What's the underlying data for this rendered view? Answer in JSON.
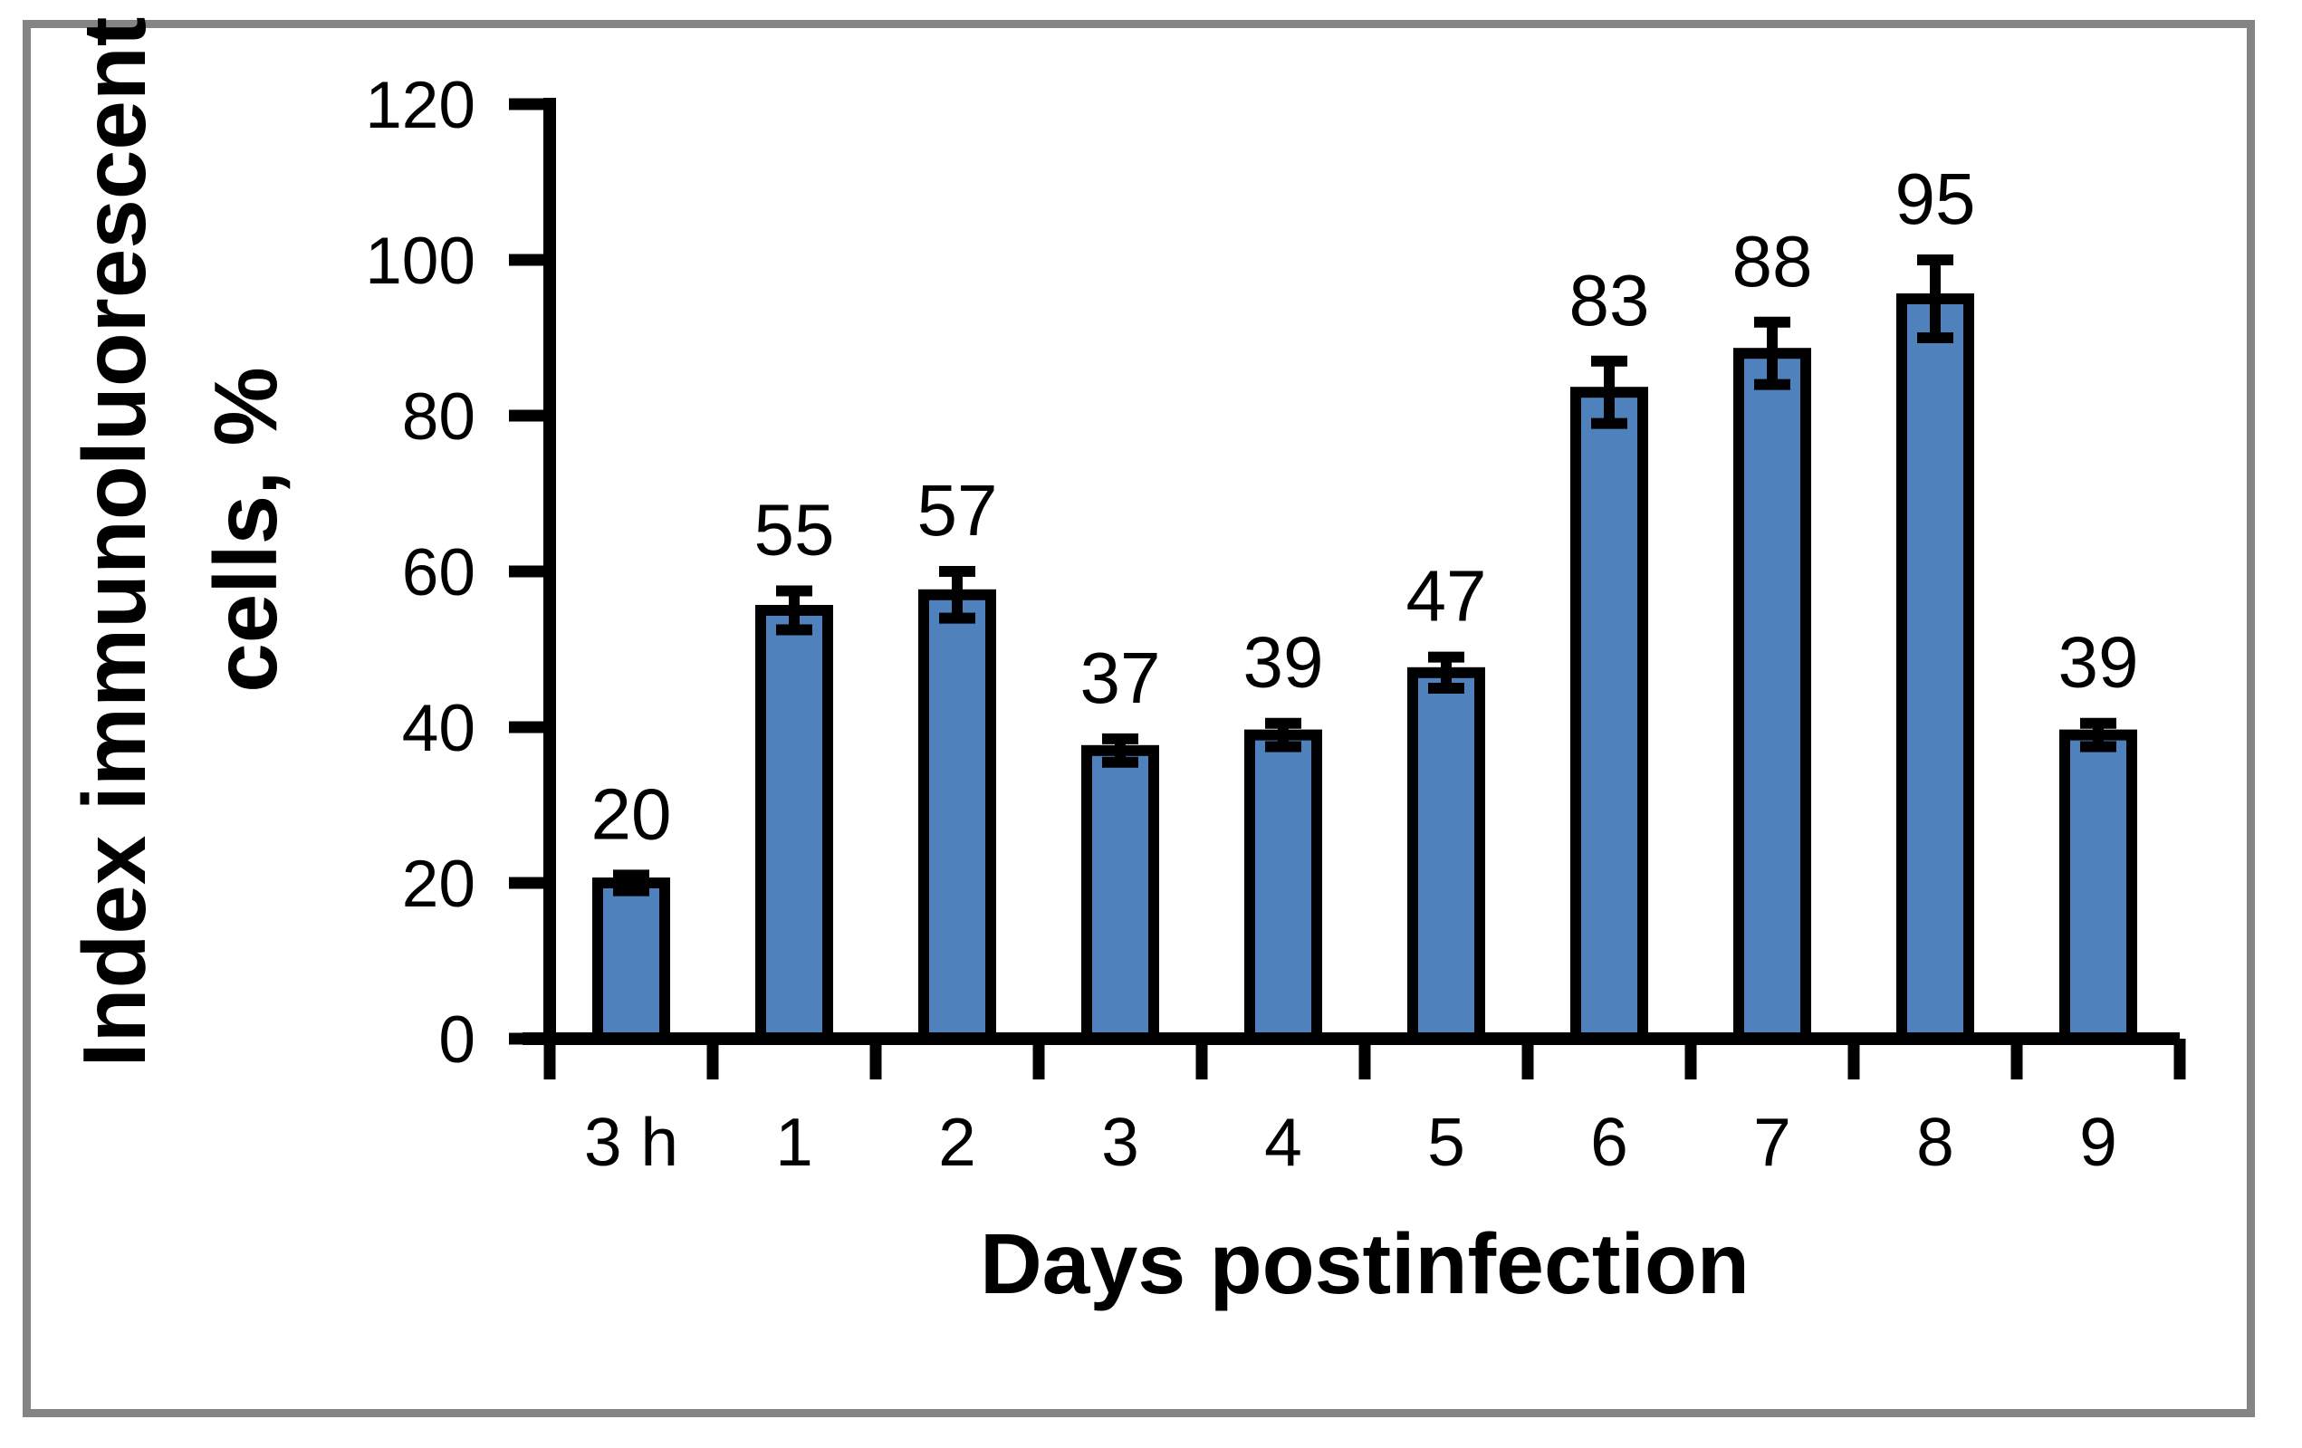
{
  "chart_data": {
    "type": "bar",
    "title": "",
    "categories": [
      "3 h",
      "1",
      "2",
      "3",
      "4",
      "5",
      "6",
      "7",
      "8",
      "9"
    ],
    "values": [
      20,
      55,
      57,
      37,
      39,
      47,
      83,
      88,
      95,
      39
    ],
    "errors": [
      1,
      2.5,
      3,
      1.5,
      1.5,
      2,
      4,
      4,
      5,
      1.5
    ],
    "data_labels": [
      "20",
      "55",
      "57",
      "37",
      "39",
      "47",
      "83",
      "88",
      "95",
      "39"
    ],
    "xlabel": "Days postinfection",
    "ylabel_line1": "Index immunoluorescent",
    "ylabel_line2": "cells, %",
    "yticks": [
      0,
      20,
      40,
      60,
      80,
      100,
      120
    ],
    "ylim": [
      0,
      120
    ],
    "grid": "off",
    "legend": "none",
    "colors": {
      "bar_fill": "#4F81BD",
      "bar_border": "#000000",
      "axis": "#000000",
      "text": "#000000",
      "frame": "#848484",
      "background": "#ffffff"
    }
  }
}
